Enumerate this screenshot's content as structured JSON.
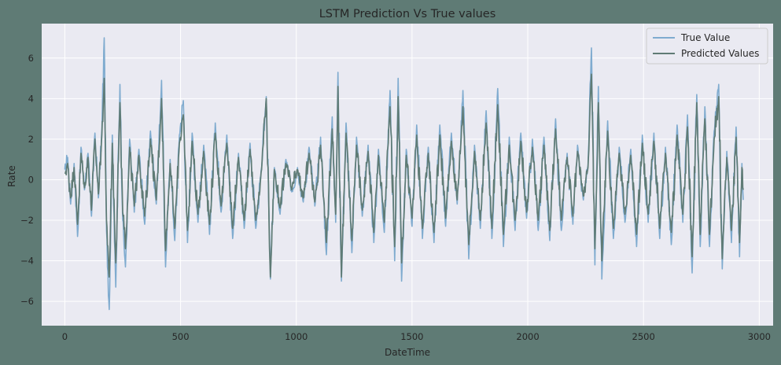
{
  "figure": {
    "background": "#5f7b75"
  },
  "chart_data": {
    "type": "line",
    "title": "LSTM Prediction Vs True values",
    "xlabel": "DateTime",
    "ylabel": "Rate",
    "xlim": [
      -100,
      3060
    ],
    "ylim": [
      -7.2,
      7.7
    ],
    "xticks": [
      0,
      500,
      1000,
      1500,
      2000,
      2500,
      3000
    ],
    "yticks": [
      -6,
      -4,
      -2,
      0,
      2,
      4,
      6
    ],
    "grid": true,
    "legend_position": "top-right",
    "plot_background": "#eaeaf2",
    "grid_color": "#ffffff",
    "n_points": 2932,
    "series": [
      {
        "name": "True Value",
        "color": "#7fabcf",
        "peaks": [
          [
            0,
            0.5
          ],
          [
            12,
            1.1
          ],
          [
            25,
            -1.2
          ],
          [
            40,
            0.8
          ],
          [
            55,
            -2.8
          ],
          [
            70,
            1.6
          ],
          [
            85,
            -0.5
          ],
          [
            100,
            1.3
          ],
          [
            115,
            -1.8
          ],
          [
            130,
            2.3
          ],
          [
            145,
            -0.9
          ],
          [
            160,
            2.5
          ],
          [
            170,
            7.0
          ],
          [
            180,
            -2.5
          ],
          [
            192,
            -6.4
          ],
          [
            205,
            2.2
          ],
          [
            220,
            -5.3
          ],
          [
            238,
            4.7
          ],
          [
            250,
            -2.0
          ],
          [
            262,
            -4.3
          ],
          [
            280,
            2.0
          ],
          [
            300,
            -1.6
          ],
          [
            320,
            1.5
          ],
          [
            345,
            -2.2
          ],
          [
            370,
            2.4
          ],
          [
            395,
            -1.2
          ],
          [
            418,
            4.9
          ],
          [
            435,
            -4.3
          ],
          [
            455,
            1.0
          ],
          [
            475,
            -3.0
          ],
          [
            495,
            2.2
          ],
          [
            512,
            3.9
          ],
          [
            530,
            -3.1
          ],
          [
            550,
            2.3
          ],
          [
            575,
            -2.1
          ],
          [
            600,
            1.7
          ],
          [
            625,
            -2.7
          ],
          [
            650,
            2.8
          ],
          [
            675,
            -1.6
          ],
          [
            700,
            2.2
          ],
          [
            725,
            -2.9
          ],
          [
            750,
            1.3
          ],
          [
            775,
            -2.4
          ],
          [
            800,
            1.8
          ],
          [
            825,
            -2.4
          ],
          [
            850,
            0.6
          ],
          [
            870,
            4.1
          ],
          [
            888,
            -4.9
          ],
          [
            905,
            0.6
          ],
          [
            930,
            -1.7
          ],
          [
            955,
            1.0
          ],
          [
            980,
            -0.6
          ],
          [
            1005,
            0.6
          ],
          [
            1030,
            -1.1
          ],
          [
            1055,
            1.6
          ],
          [
            1080,
            -1.3
          ],
          [
            1105,
            2.1
          ],
          [
            1130,
            -3.7
          ],
          [
            1155,
            3.1
          ],
          [
            1170,
            -2.1
          ],
          [
            1180,
            5.3
          ],
          [
            1195,
            -5.0
          ],
          [
            1215,
            2.8
          ],
          [
            1240,
            -3.6
          ],
          [
            1260,
            2.1
          ],
          [
            1285,
            -1.8
          ],
          [
            1310,
            1.7
          ],
          [
            1335,
            -3.1
          ],
          [
            1355,
            1.5
          ],
          [
            1380,
            -2.6
          ],
          [
            1405,
            4.4
          ],
          [
            1425,
            -4.0
          ],
          [
            1440,
            5.0
          ],
          [
            1455,
            -5.0
          ],
          [
            1475,
            1.5
          ],
          [
            1500,
            -2.3
          ],
          [
            1520,
            2.7
          ],
          [
            1545,
            -2.9
          ],
          [
            1570,
            1.6
          ],
          [
            1595,
            -3.1
          ],
          [
            1620,
            2.7
          ],
          [
            1645,
            -2.3
          ],
          [
            1670,
            2.3
          ],
          [
            1695,
            -1.2
          ],
          [
            1720,
            4.4
          ],
          [
            1745,
            -3.9
          ],
          [
            1770,
            1.7
          ],
          [
            1795,
            -2.4
          ],
          [
            1820,
            3.4
          ],
          [
            1845,
            -2.9
          ],
          [
            1870,
            4.5
          ],
          [
            1895,
            -3.3
          ],
          [
            1920,
            2.1
          ],
          [
            1945,
            -2.5
          ],
          [
            1970,
            2.3
          ],
          [
            1995,
            -1.9
          ],
          [
            2020,
            2.0
          ],
          [
            2045,
            -2.5
          ],
          [
            2070,
            2.1
          ],
          [
            2095,
            -3.0
          ],
          [
            2120,
            3.0
          ],
          [
            2145,
            -2.5
          ],
          [
            2170,
            1.3
          ],
          [
            2195,
            -2.2
          ],
          [
            2215,
            1.7
          ],
          [
            2240,
            -1.0
          ],
          [
            2260,
            0.7
          ],
          [
            2275,
            6.5
          ],
          [
            2290,
            -4.2
          ],
          [
            2305,
            4.6
          ],
          [
            2320,
            -4.9
          ],
          [
            2345,
            2.9
          ],
          [
            2370,
            -2.9
          ],
          [
            2395,
            1.6
          ],
          [
            2420,
            -2.1
          ],
          [
            2445,
            1.5
          ],
          [
            2470,
            -3.3
          ],
          [
            2495,
            2.2
          ],
          [
            2520,
            -2.1
          ],
          [
            2545,
            2.3
          ],
          [
            2570,
            -2.9
          ],
          [
            2595,
            1.6
          ],
          [
            2620,
            -3.2
          ],
          [
            2645,
            2.7
          ],
          [
            2670,
            -2.1
          ],
          [
            2690,
            3.2
          ],
          [
            2710,
            -4.6
          ],
          [
            2730,
            4.2
          ],
          [
            2745,
            -3.3
          ],
          [
            2765,
            3.6
          ],
          [
            2785,
            -3.3
          ],
          [
            2805,
            2.4
          ],
          [
            2825,
            4.7
          ],
          [
            2840,
            -4.4
          ],
          [
            2860,
            1.4
          ],
          [
            2880,
            -3.1
          ],
          [
            2900,
            2.6
          ],
          [
            2915,
            -3.8
          ],
          [
            2925,
            0.8
          ],
          [
            2931,
            -1.0
          ]
        ]
      },
      {
        "name": "Predicted Values",
        "color": "#5f7b75",
        "peaks": [
          [
            0,
            0.3
          ],
          [
            12,
            0.8
          ],
          [
            25,
            -0.9
          ],
          [
            40,
            0.6
          ],
          [
            55,
            -2.2
          ],
          [
            70,
            1.3
          ],
          [
            85,
            -0.4
          ],
          [
            100,
            1.1
          ],
          [
            115,
            -1.5
          ],
          [
            130,
            2.0
          ],
          [
            145,
            -0.7
          ],
          [
            160,
            2.2
          ],
          [
            170,
            5.0
          ],
          [
            180,
            -2.0
          ],
          [
            192,
            -4.8
          ],
          [
            205,
            1.8
          ],
          [
            220,
            -4.1
          ],
          [
            238,
            3.8
          ],
          [
            250,
            -1.6
          ],
          [
            262,
            -3.4
          ],
          [
            280,
            1.6
          ],
          [
            300,
            -1.3
          ],
          [
            320,
            1.2
          ],
          [
            345,
            -1.8
          ],
          [
            370,
            2.0
          ],
          [
            395,
            -1.0
          ],
          [
            418,
            4.0
          ],
          [
            435,
            -3.5
          ],
          [
            455,
            0.8
          ],
          [
            475,
            -2.4
          ],
          [
            495,
            1.8
          ],
          [
            512,
            3.2
          ],
          [
            530,
            -2.5
          ],
          [
            550,
            1.9
          ],
          [
            575,
            -1.7
          ],
          [
            600,
            1.4
          ],
          [
            625,
            -2.2
          ],
          [
            650,
            2.3
          ],
          [
            675,
            -1.3
          ],
          [
            700,
            1.8
          ],
          [
            725,
            -2.4
          ],
          [
            750,
            1.1
          ],
          [
            775,
            -2.0
          ],
          [
            800,
            1.5
          ],
          [
            825,
            -2.0
          ],
          [
            850,
            0.5
          ],
          [
            870,
            4.0
          ],
          [
            888,
            -4.8
          ],
          [
            905,
            0.5
          ],
          [
            930,
            -1.4
          ],
          [
            955,
            0.8
          ],
          [
            980,
            -0.5
          ],
          [
            1005,
            0.5
          ],
          [
            1030,
            -0.9
          ],
          [
            1055,
            1.3
          ],
          [
            1080,
            -1.1
          ],
          [
            1105,
            1.7
          ],
          [
            1130,
            -3.1
          ],
          [
            1155,
            2.5
          ],
          [
            1170,
            -1.7
          ],
          [
            1180,
            4.6
          ],
          [
            1195,
            -4.8
          ],
          [
            1215,
            2.3
          ],
          [
            1240,
            -3.0
          ],
          [
            1260,
            1.7
          ],
          [
            1285,
            -1.5
          ],
          [
            1310,
            1.4
          ],
          [
            1335,
            -2.6
          ],
          [
            1355,
            1.2
          ],
          [
            1380,
            -2.1
          ],
          [
            1405,
            3.6
          ],
          [
            1425,
            -3.3
          ],
          [
            1440,
            4.1
          ],
          [
            1455,
            -4.1
          ],
          [
            1475,
            1.2
          ],
          [
            1500,
            -1.9
          ],
          [
            1520,
            2.2
          ],
          [
            1545,
            -2.4
          ],
          [
            1570,
            1.3
          ],
          [
            1595,
            -2.6
          ],
          [
            1620,
            2.2
          ],
          [
            1645,
            -1.9
          ],
          [
            1670,
            1.9
          ],
          [
            1695,
            -1.0
          ],
          [
            1720,
            3.6
          ],
          [
            1745,
            -3.2
          ],
          [
            1770,
            1.4
          ],
          [
            1795,
            -2.0
          ],
          [
            1820,
            2.8
          ],
          [
            1845,
            -2.4
          ],
          [
            1870,
            3.7
          ],
          [
            1895,
            -2.7
          ],
          [
            1920,
            1.7
          ],
          [
            1945,
            -2.0
          ],
          [
            1970,
            1.9
          ],
          [
            1995,
            -1.6
          ],
          [
            2020,
            1.6
          ],
          [
            2045,
            -2.0
          ],
          [
            2070,
            1.7
          ],
          [
            2095,
            -2.5
          ],
          [
            2120,
            2.5
          ],
          [
            2145,
            -2.0
          ],
          [
            2170,
            1.1
          ],
          [
            2195,
            -1.8
          ],
          [
            2215,
            1.4
          ],
          [
            2240,
            -0.8
          ],
          [
            2260,
            0.6
          ],
          [
            2275,
            5.2
          ],
          [
            2290,
            -3.4
          ],
          [
            2305,
            3.8
          ],
          [
            2320,
            -4.0
          ],
          [
            2345,
            2.4
          ],
          [
            2370,
            -2.4
          ],
          [
            2395,
            1.3
          ],
          [
            2420,
            -1.7
          ],
          [
            2445,
            1.2
          ],
          [
            2470,
            -2.7
          ],
          [
            2495,
            1.8
          ],
          [
            2520,
            -1.7
          ],
          [
            2545,
            1.9
          ],
          [
            2570,
            -2.4
          ],
          [
            2595,
            1.3
          ],
          [
            2620,
            -2.6
          ],
          [
            2645,
            2.2
          ],
          [
            2670,
            -1.7
          ],
          [
            2690,
            2.6
          ],
          [
            2710,
            -3.8
          ],
          [
            2730,
            3.8
          ],
          [
            2745,
            -2.7
          ],
          [
            2765,
            3.0
          ],
          [
            2785,
            -2.7
          ],
          [
            2805,
            2.0
          ],
          [
            2825,
            4.1
          ],
          [
            2840,
            -3.9
          ],
          [
            2860,
            1.1
          ],
          [
            2880,
            -2.5
          ],
          [
            2900,
            2.1
          ],
          [
            2915,
            -3.1
          ],
          [
            2925,
            0.6
          ],
          [
            2931,
            -0.5
          ]
        ]
      }
    ]
  }
}
